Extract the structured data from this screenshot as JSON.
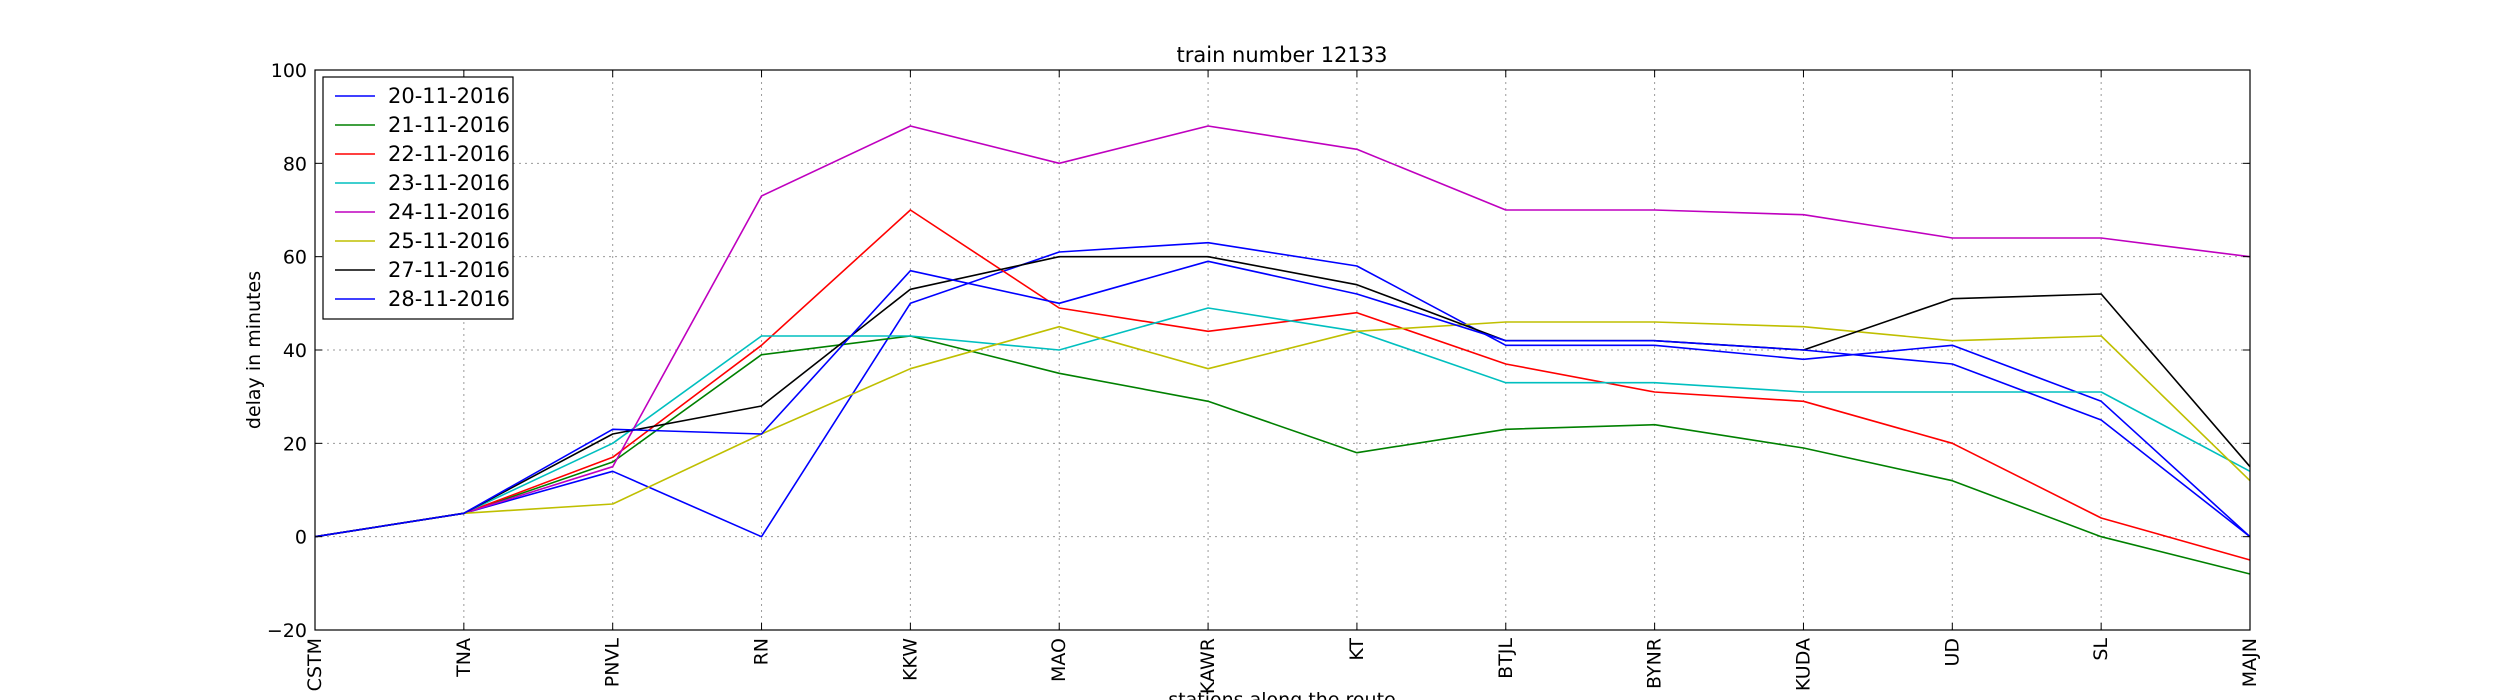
{
  "chart_data": {
    "type": "line",
    "title": "train number 12133",
    "xlabel": "stations along the route",
    "ylabel": "delay in minutes",
    "categories": [
      "CSTM",
      "TNA",
      "PNVL",
      "RN",
      "KKW",
      "MAO",
      "KAWR",
      "KT",
      "BTJL",
      "BYNR",
      "KUDA",
      "UD",
      "SL",
      "MAJN"
    ],
    "ylim": [
      -20,
      100
    ],
    "yticks": [
      -20,
      0,
      20,
      40,
      60,
      80,
      100
    ],
    "grid": true,
    "legend_position": "top-left",
    "series": [
      {
        "name": "20-11-2016",
        "color": "#0000ff",
        "values": [
          0,
          5,
          14,
          0,
          50,
          61,
          63,
          58,
          41,
          41,
          38,
          41,
          29,
          0
        ]
      },
      {
        "name": "21-11-2016",
        "color": "#008000",
        "values": [
          0,
          5,
          16,
          39,
          43,
          35,
          29,
          18,
          23,
          24,
          19,
          12,
          0,
          -8
        ]
      },
      {
        "name": "22-11-2016",
        "color": "#ff0000",
        "values": [
          0,
          5,
          17,
          41,
          70,
          49,
          44,
          48,
          37,
          31,
          29,
          20,
          4,
          -5
        ]
      },
      {
        "name": "23-11-2016",
        "color": "#00bfbf",
        "values": [
          0,
          5,
          20,
          43,
          43,
          40,
          49,
          44,
          33,
          33,
          31,
          31,
          31,
          14
        ]
      },
      {
        "name": "24-11-2016",
        "color": "#bf00bf",
        "values": [
          0,
          5,
          15,
          73,
          88,
          80,
          88,
          83,
          70,
          70,
          69,
          64,
          64,
          60
        ]
      },
      {
        "name": "25-11-2016",
        "color": "#bfbf00",
        "values": [
          0,
          5,
          7,
          22,
          36,
          45,
          36,
          44,
          46,
          46,
          45,
          42,
          43,
          12
        ]
      },
      {
        "name": "27-11-2016",
        "color": "#000000",
        "values": [
          0,
          5,
          22,
          28,
          53,
          60,
          60,
          54,
          42,
          42,
          40,
          51,
          52,
          15
        ]
      },
      {
        "name": "28-11-2016",
        "color": "#0000ff",
        "values": [
          0,
          5,
          23,
          22,
          57,
          50,
          59,
          52,
          42,
          42,
          40,
          37,
          25,
          0
        ]
      }
    ]
  }
}
